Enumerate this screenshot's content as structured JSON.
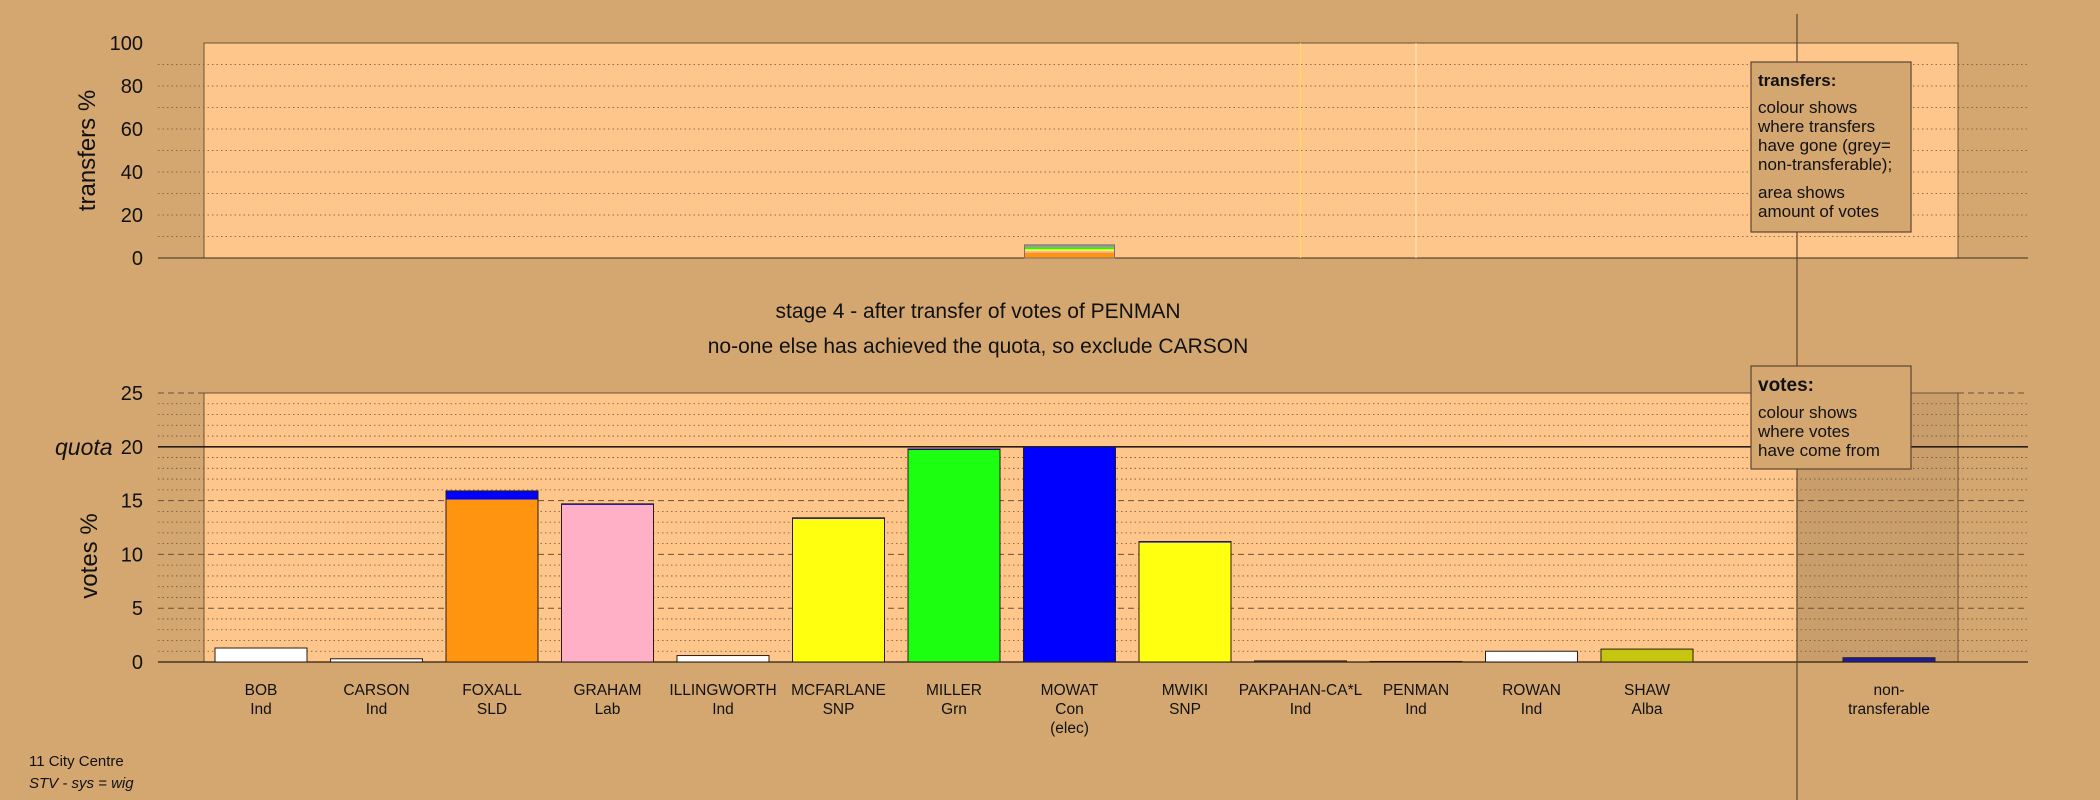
{
  "colors": {
    "background": "#D4A771",
    "plot_bg": "#FFC68C",
    "Ind": "#FFFFFF",
    "SLD": "#FF9410",
    "Lab": "#FFB0C6",
    "SNP": "#FFFF10",
    "Grn": "#1CFF10",
    "Con": "#0000FF",
    "Alba": "#C6C610",
    "nt": "#1C1CA0",
    "grey": "#A09A94"
  },
  "footer": {
    "ward": "11 City Centre",
    "system": "STV - sys = wig"
  },
  "stage": {
    "line1": "stage 4 - after transfer of votes of PENMAN",
    "line2": "no-one else has achieved the quota, so exclude CARSON"
  },
  "legend_transfers": {
    "title": "transfers:",
    "lines": [
      "colour shows",
      "where transfers",
      "have gone (grey=",
      "non-transferable);"
    ],
    "lines2": [
      "area shows",
      "amount of votes"
    ]
  },
  "legend_votes": {
    "title": "votes:",
    "lines": [
      "colour shows",
      "where votes",
      "have come from"
    ]
  },
  "chart_data": [
    {
      "type": "bar",
      "name": "transfers",
      "ylabel": "transfers %",
      "ylim": [
        0,
        100
      ],
      "yticks": [
        0,
        20,
        40,
        60,
        80,
        100
      ],
      "grid": true,
      "from_candidate": "PENMAN",
      "transfer_column": "MOWAT",
      "transfer_segments": [
        {
          "party": "SLD",
          "value": 2.5
        },
        {
          "party": "Lab",
          "value": 0.8
        },
        {
          "party": "SNP",
          "value": 0.8
        },
        {
          "party": "Grn",
          "value": 0.8
        },
        {
          "party": "grey",
          "value": 1.2
        }
      ],
      "transfer_total": 6.1
    },
    {
      "type": "bar",
      "name": "votes",
      "ylabel": "votes %",
      "quota_label": "quota",
      "quota": 20,
      "ylim": [
        0,
        25
      ],
      "yticks": [
        0,
        5,
        10,
        15,
        20,
        25
      ],
      "grid": true,
      "categories": [
        {
          "name": "BOB",
          "party": "Ind"
        },
        {
          "name": "CARSON",
          "party": "Ind"
        },
        {
          "name": "FOXALL",
          "party": "SLD"
        },
        {
          "name": "GRAHAM",
          "party": "Lab"
        },
        {
          "name": "ILLINGWORTH",
          "party": "Ind"
        },
        {
          "name": "MCFARLANE",
          "party": "SNP"
        },
        {
          "name": "MILLER",
          "party": "Grn"
        },
        {
          "name": "MOWAT",
          "party": "Con",
          "note": "(elec)"
        },
        {
          "name": "MWIKI",
          "party": "SNP"
        },
        {
          "name": "PAKPAHAN-CA*L",
          "party": "Ind"
        },
        {
          "name": "PENMAN",
          "party": "Ind"
        },
        {
          "name": "ROWAN",
          "party": "Ind"
        },
        {
          "name": "SHAW",
          "party": "Alba"
        }
      ],
      "series": [
        {
          "party_source": "own",
          "values": [
            1.3,
            0.3,
            15.1,
            14.6,
            0.6,
            13.3,
            19.7,
            20.0,
            11.1,
            0.1,
            0.05,
            1.0,
            1.2
          ]
        },
        {
          "party_source": "Con",
          "values": [
            0,
            0,
            0.8,
            0.1,
            0,
            0.1,
            0.1,
            0,
            0.1,
            0,
            0,
            0,
            0
          ]
        }
      ],
      "non_transferable": {
        "label": "non-transferable",
        "value": 0.4
      }
    }
  ]
}
